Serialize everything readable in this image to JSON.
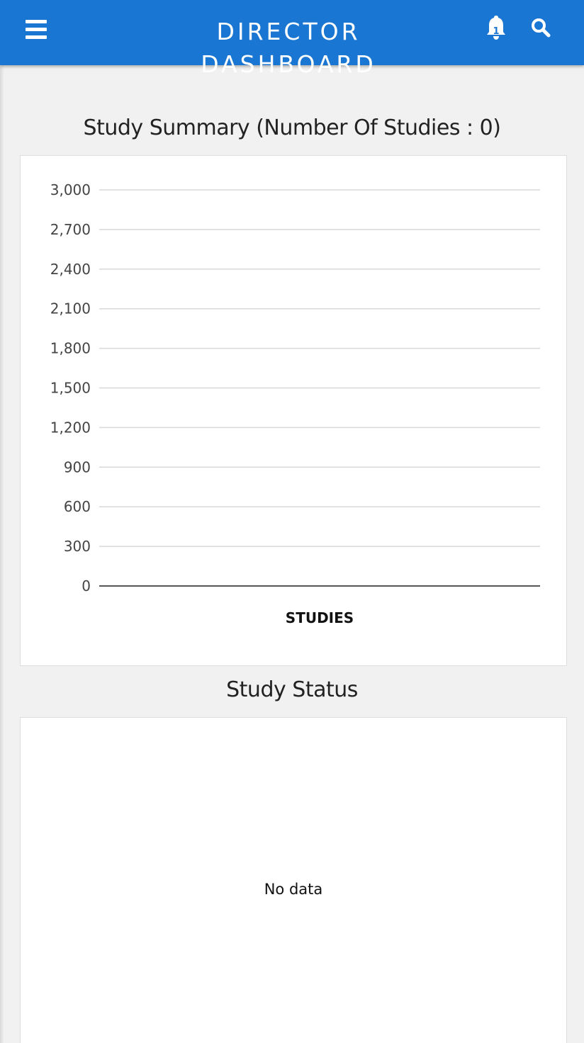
{
  "header": {
    "title": "DIRECTOR\nDASHBOARD",
    "menu_icon": "hamburger-menu-icon",
    "notification_icon": "bell-icon",
    "notification_count": "1",
    "search_icon": "search-icon",
    "bar_color": "#1976d2"
  },
  "study_summary": {
    "title": "Study Summary (Number Of Studies : 0)"
  },
  "study_status": {
    "title": "Study Status",
    "empty_text": "No data"
  },
  "chart_data": {
    "type": "bar",
    "categories": [],
    "series": [],
    "xlabel": "STUDIES",
    "ylabel": "",
    "ylim": [
      0,
      3000
    ],
    "ytick_values": [
      0,
      300,
      600,
      900,
      1200,
      1500,
      1800,
      2100,
      2400,
      2700,
      3000
    ],
    "ytick_labels": [
      "0",
      "300",
      "600",
      "900",
      "1,200",
      "1,500",
      "1,800",
      "2,100",
      "2,400",
      "2,700",
      "3,000"
    ],
    "grid": true,
    "legend": "none"
  }
}
